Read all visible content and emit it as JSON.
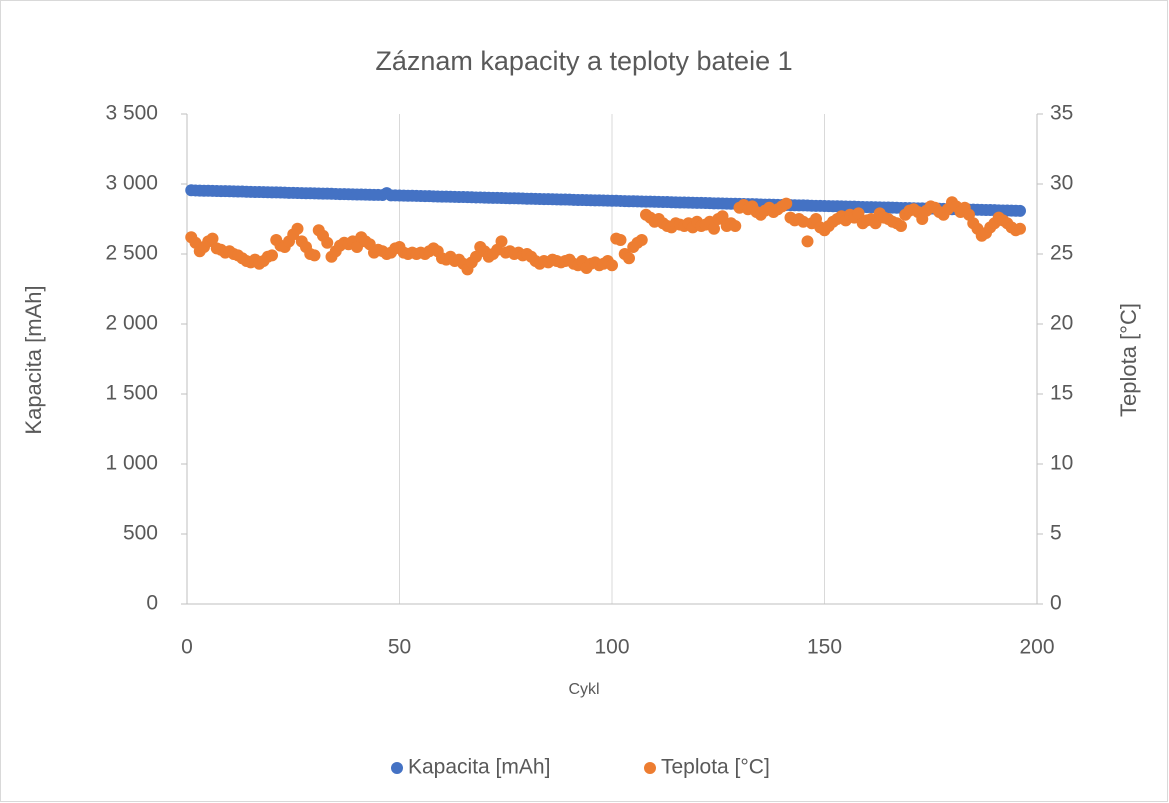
{
  "chart_data": {
    "type": "scatter",
    "title": "Záznam kapacity a teploty bateie 1",
    "x_label": "Cykl",
    "y_label": "Kapacita [mAh]",
    "y2_label": "Teplota [°C]",
    "xlim": [
      0,
      200
    ],
    "xticks": [
      0,
      50,
      100,
      150,
      200
    ],
    "ylim": [
      0,
      3500
    ],
    "yticks": [
      0,
      500,
      {
        "value": 1000,
        "label": "1 000"
      },
      {
        "value": 1500,
        "label": "1 500"
      },
      {
        "value": 2000,
        "label": "2 000"
      },
      {
        "value": 2500,
        "label": "2 500"
      },
      {
        "value": 3000,
        "label": "3 000"
      },
      {
        "value": 3500,
        "label": "3 500"
      }
    ],
    "y2lim": [
      0,
      35
    ],
    "y2ticks": [
      0,
      5,
      10,
      15,
      20,
      25,
      30,
      35
    ],
    "grid": true,
    "legend": "bottom",
    "x": [
      1,
      2,
      3,
      4,
      5,
      6,
      7,
      8,
      9,
      10,
      11,
      12,
      13,
      14,
      15,
      16,
      17,
      18,
      19,
      20,
      21,
      22,
      23,
      24,
      25,
      26,
      27,
      28,
      29,
      30,
      31,
      32,
      33,
      34,
      35,
      36,
      37,
      38,
      39,
      40,
      41,
      42,
      43,
      44,
      45,
      46,
      47,
      48,
      49,
      50,
      51,
      52,
      53,
      54,
      55,
      56,
      57,
      58,
      59,
      60,
      61,
      62,
      63,
      64,
      65,
      66,
      67,
      68,
      69,
      70,
      71,
      72,
      73,
      74,
      75,
      76,
      77,
      78,
      79,
      80,
      81,
      82,
      83,
      84,
      85,
      86,
      87,
      88,
      89,
      90,
      91,
      92,
      93,
      94,
      95,
      96,
      97,
      98,
      99,
      100,
      101,
      102,
      103,
      104,
      105,
      106,
      107,
      108,
      109,
      110,
      111,
      112,
      113,
      114,
      115,
      116,
      117,
      118,
      119,
      120,
      121,
      122,
      123,
      124,
      125,
      126,
      127,
      128,
      129,
      130,
      131,
      132,
      133,
      134,
      135,
      136,
      137,
      138,
      139,
      140,
      141,
      142,
      143,
      144,
      145,
      146,
      147,
      148,
      149,
      150,
      151,
      152,
      153,
      154,
      155,
      156,
      157,
      158,
      159,
      160,
      161,
      162,
      163,
      164,
      165,
      166,
      167,
      168,
      169,
      170,
      171,
      172,
      173,
      174,
      175,
      176,
      177,
      178,
      179,
      180,
      181,
      182,
      183,
      184,
      185,
      186,
      187,
      188,
      189,
      190,
      191,
      192,
      193,
      194,
      195,
      196
    ],
    "series": [
      {
        "name": "Kapacita [mAh]",
        "color": "#4472c4",
        "values": [
          2955,
          2954,
          2953,
          2952,
          2952,
          2951,
          2950,
          2949,
          2949,
          2948,
          2947,
          2946,
          2946,
          2945,
          2944,
          2943,
          2943,
          2942,
          2941,
          2940,
          2940,
          2939,
          2938,
          2937,
          2937,
          2936,
          2935,
          2934,
          2934,
          2933,
          2932,
          2931,
          2931,
          2930,
          2929,
          2928,
          2928,
          2927,
          2926,
          2925,
          2925,
          2924,
          2923,
          2922,
          2922,
          2921,
          2935,
          2919,
          2919,
          2918,
          2917,
          2916,
          2916,
          2915,
          2914,
          2913,
          2913,
          2912,
          2911,
          2910,
          2910,
          2909,
          2908,
          2907,
          2907,
          2906,
          2905,
          2904,
          2904,
          2903,
          2902,
          2901,
          2901,
          2900,
          2899,
          2898,
          2898,
          2897,
          2896,
          2895,
          2895,
          2894,
          2893,
          2892,
          2892,
          2891,
          2890,
          2889,
          2889,
          2888,
          2887,
          2886,
          2886,
          2885,
          2884,
          2883,
          2883,
          2882,
          2881,
          2880,
          2880,
          2879,
          2878,
          2877,
          2877,
          2876,
          2875,
          2874,
          2874,
          2873,
          2872,
          2871,
          2871,
          2870,
          2869,
          2868,
          2868,
          2867,
          2866,
          2865,
          2865,
          2864,
          2863,
          2862,
          2862,
          2861,
          2860,
          2859,
          2859,
          2858,
          2857,
          2856,
          2856,
          2855,
          2854,
          2853,
          2853,
          2852,
          2851,
          2850,
          2850,
          2849,
          2848,
          2847,
          2847,
          2846,
          2845,
          2844,
          2844,
          2843,
          2842,
          2841,
          2841,
          2840,
          2839,
          2838,
          2838,
          2837,
          2836,
          2835,
          2835,
          2834,
          2833,
          2832,
          2832,
          2831,
          2830,
          2829,
          2829,
          2828,
          2827,
          2826,
          2826,
          2825,
          2824,
          2823,
          2823,
          2822,
          2821,
          2820,
          2820,
          2819,
          2818,
          2817,
          2817,
          2816,
          2815,
          2814,
          2814,
          2813,
          2812,
          2811,
          2811,
          2810,
          2809,
          2808
        ]
      },
      {
        "name": "Teplota [°C]",
        "color": "#ed7d31",
        "axis": "y2",
        "values": [
          26.2,
          25.8,
          25.2,
          25.5,
          25.9,
          26.1,
          25.4,
          25.3,
          25.1,
          25.2,
          25.0,
          24.9,
          24.7,
          24.5,
          24.4,
          24.6,
          24.3,
          24.5,
          24.8,
          24.9,
          26.0,
          25.6,
          25.5,
          25.9,
          26.4,
          26.8,
          25.9,
          25.5,
          25.0,
          24.9,
          26.7,
          26.3,
          25.8,
          24.8,
          25.2,
          25.6,
          25.8,
          25.7,
          25.9,
          25.5,
          26.2,
          25.9,
          25.7,
          25.1,
          25.3,
          25.2,
          25.0,
          25.1,
          25.4,
          25.5,
          25.1,
          25.0,
          25.1,
          25.0,
          25.1,
          25.0,
          25.2,
          25.4,
          25.2,
          24.7,
          24.6,
          24.8,
          24.5,
          24.6,
          24.3,
          23.9,
          24.4,
          24.8,
          25.5,
          25.2,
          24.8,
          25.0,
          25.3,
          25.9,
          25.1,
          25.2,
          25.0,
          25.1,
          24.9,
          25.0,
          24.8,
          24.5,
          24.3,
          24.5,
          24.4,
          24.6,
          24.5,
          24.4,
          24.5,
          24.6,
          24.3,
          24.2,
          24.5,
          24.0,
          24.3,
          24.4,
          24.2,
          24.3,
          24.5,
          24.2,
          26.1,
          26.0,
          25.0,
          24.7,
          25.5,
          25.8,
          26.0,
          27.8,
          27.6,
          27.3,
          27.5,
          27.2,
          27.0,
          26.9,
          27.2,
          27.1,
          27.0,
          27.2,
          26.9,
          27.3,
          27.0,
          27.1,
          27.3,
          26.8,
          27.5,
          27.7,
          27.0,
          27.2,
          27.0,
          28.3,
          28.5,
          28.2,
          28.4,
          28.0,
          27.8,
          28.1,
          28.3,
          28.0,
          28.2,
          28.4,
          28.6,
          27.6,
          27.4,
          27.5,
          27.3,
          25.9,
          27.2,
          27.5,
          26.9,
          26.7,
          27.0,
          27.3,
          27.5,
          27.7,
          27.4,
          27.8,
          27.6,
          27.9,
          27.2,
          27.4,
          27.5,
          27.2,
          27.9,
          27.6,
          27.5,
          27.3,
          27.2,
          27.0,
          27.8,
          28.1,
          28.2,
          28.0,
          27.5,
          28.1,
          28.4,
          28.3,
          28.0,
          27.8,
          28.2,
          28.7,
          28.4,
          28.0,
          28.3,
          27.8,
          27.2,
          26.8,
          26.3,
          26.5,
          26.9,
          27.2,
          27.6,
          27.4,
          27.2,
          26.9,
          26.7,
          26.8
        ]
      }
    ]
  }
}
